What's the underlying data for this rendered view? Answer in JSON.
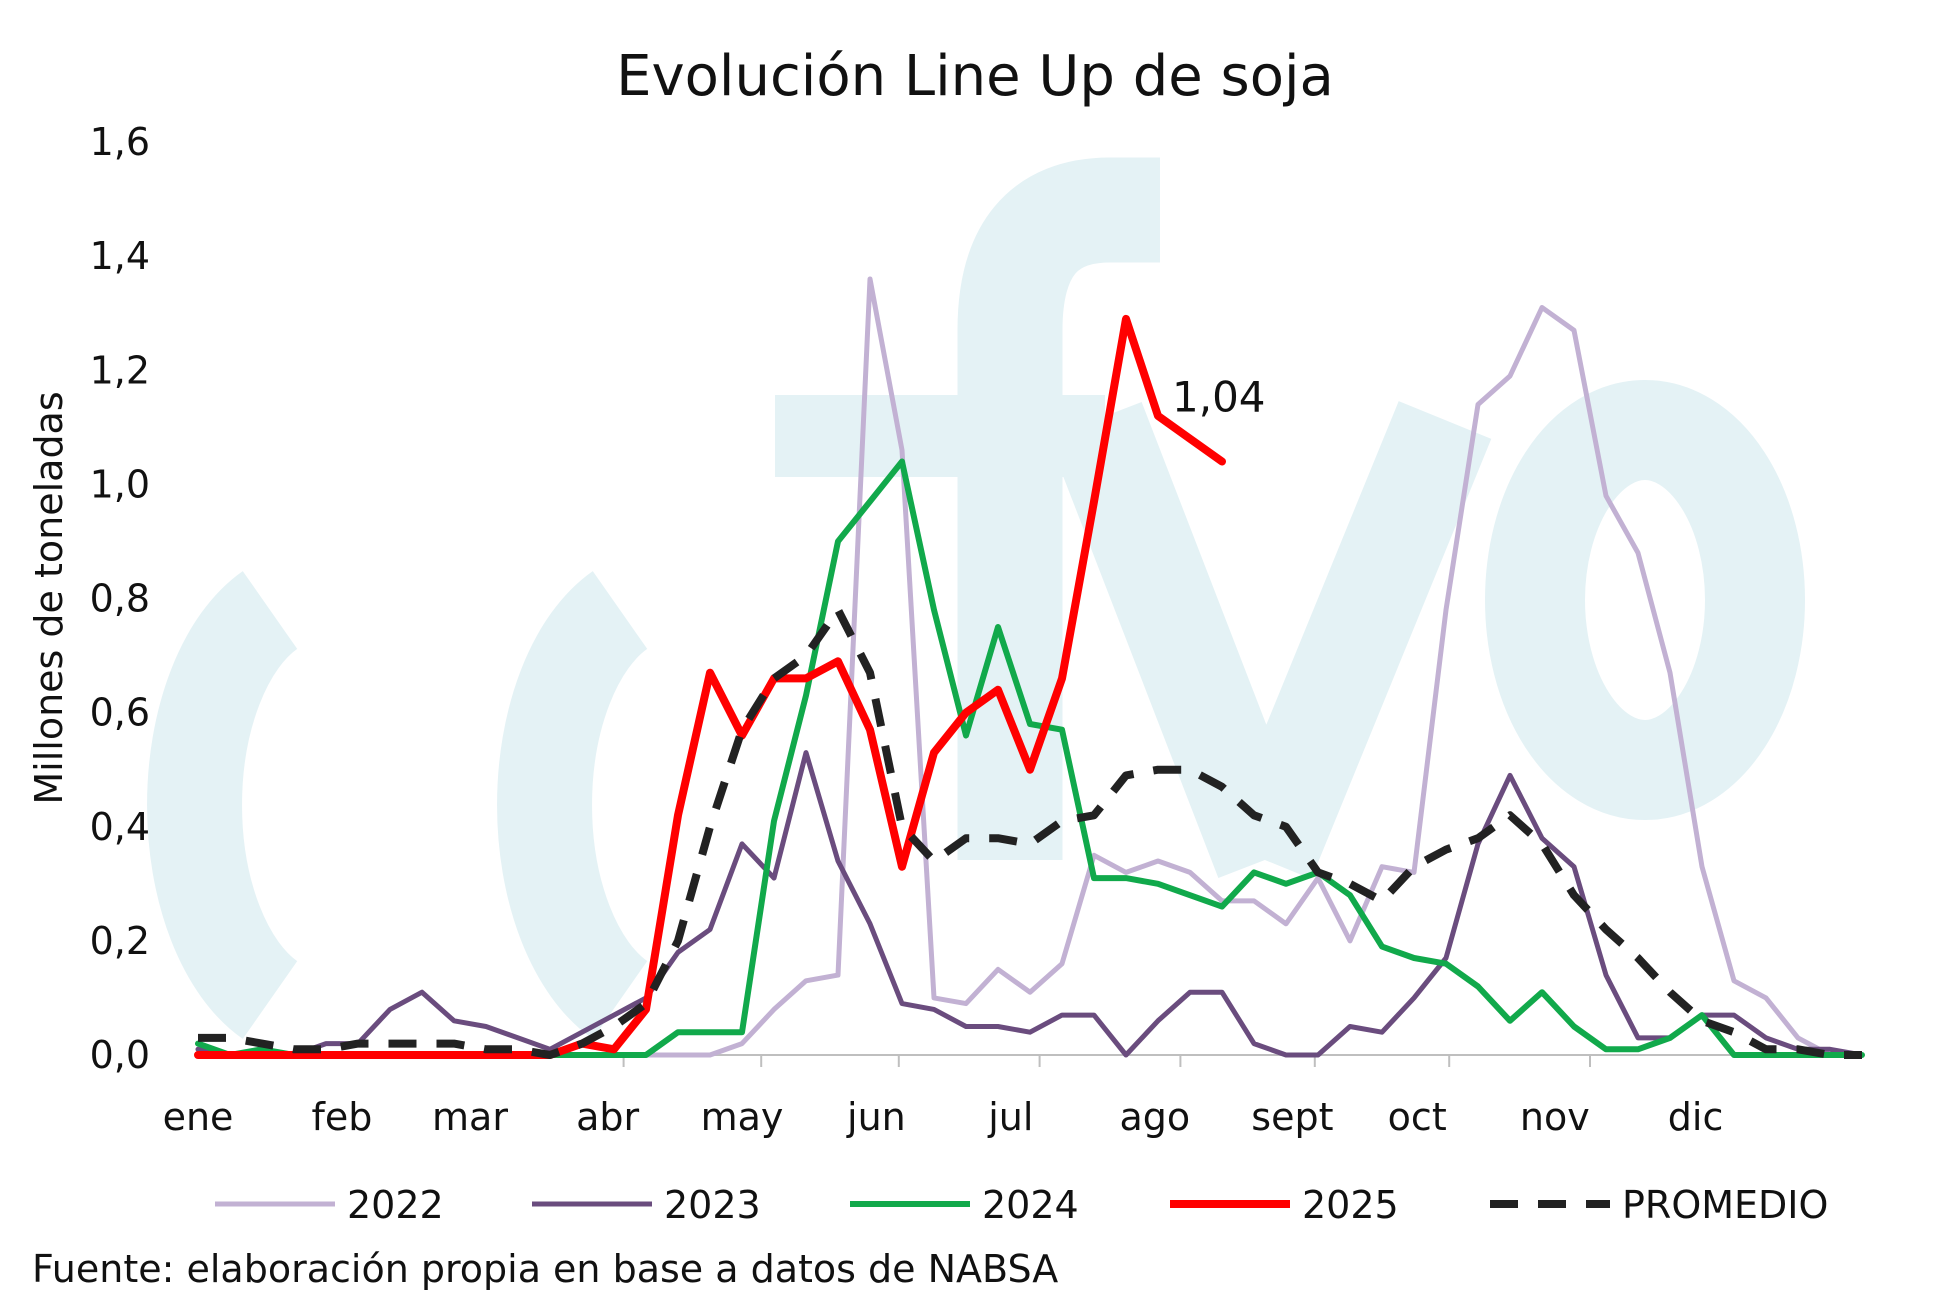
{
  "chart_data": {
    "type": "line",
    "title": "Evolución Line Up de soja",
    "ylabel": "Millones de toneladas",
    "ylim": [
      0,
      1.6
    ],
    "yticks": [
      "0,0",
      "0,2",
      "0,4",
      "0,6",
      "0,8",
      "1,0",
      "1,2",
      "1,4",
      "1,6"
    ],
    "xrange_weeks": [
      1,
      53
    ],
    "months": [
      {
        "label": "ene",
        "week": 1
      },
      {
        "label": "feb",
        "week": 5.5
      },
      {
        "label": "mar",
        "week": 9.5
      },
      {
        "label": "abr",
        "week": 13.8
      },
      {
        "label": "may",
        "week": 18
      },
      {
        "label": "jun",
        "week": 22.2
      },
      {
        "label": "jul",
        "week": 26.4
      },
      {
        "label": "ago",
        "week": 30.9
      },
      {
        "label": "sept",
        "week": 35.2
      },
      {
        "label": "oct",
        "week": 39.1
      },
      {
        "label": "nov",
        "week": 43.4
      },
      {
        "label": "dic",
        "week": 47.8
      }
    ],
    "series": [
      {
        "name": "2022",
        "color": "#c2b1d3",
        "width": 5,
        "dash": "",
        "values": [
          0.01,
          0.0,
          0.0,
          0.0,
          0.0,
          0.0,
          0.0,
          0.0,
          0.0,
          0.0,
          0.0,
          0.0,
          0.0,
          0.0,
          0.0,
          0.0,
          0.0,
          0.02,
          0.08,
          0.13,
          0.14,
          1.36,
          1.06,
          0.1,
          0.09,
          0.15,
          0.11,
          0.16,
          0.35,
          0.32,
          0.34,
          0.32,
          0.27,
          0.27,
          0.23,
          0.31,
          0.2,
          0.33,
          0.32,
          0.78,
          1.14,
          1.19,
          1.31,
          1.27,
          0.98,
          0.88,
          0.67,
          0.33,
          0.13,
          0.1,
          0.03,
          0.0,
          0.0
        ]
      },
      {
        "name": "2023",
        "color": "#6a4c7e",
        "width": 5,
        "dash": "",
        "values": [
          0.01,
          0.0,
          0.0,
          0.0,
          0.02,
          0.02,
          0.08,
          0.11,
          0.06,
          0.05,
          0.03,
          0.01,
          0.04,
          0.07,
          0.1,
          0.18,
          0.22,
          0.37,
          0.31,
          0.53,
          0.34,
          0.23,
          0.09,
          0.08,
          0.05,
          0.05,
          0.04,
          0.07,
          0.07,
          0.0,
          0.06,
          0.11,
          0.11,
          0.02,
          0.0,
          0.0,
          0.05,
          0.04,
          0.1,
          0.17,
          0.37,
          0.49,
          0.38,
          0.33,
          0.14,
          0.03,
          0.03,
          0.07,
          0.07,
          0.03,
          0.01,
          0.01,
          0.0
        ]
      },
      {
        "name": "2024",
        "color": "#11a94b",
        "width": 6,
        "dash": "",
        "values": [
          0.02,
          0.0,
          0.01,
          0.0,
          0.0,
          0.0,
          0.0,
          0.0,
          0.0,
          0.0,
          0.0,
          0.0,
          0.0,
          0.0,
          0.0,
          0.04,
          0.04,
          0.04,
          0.41,
          0.63,
          0.9,
          0.97,
          1.04,
          0.78,
          0.56,
          0.75,
          0.58,
          0.57,
          0.31,
          0.31,
          0.3,
          0.28,
          0.26,
          0.32,
          0.3,
          0.32,
          0.28,
          0.19,
          0.17,
          0.16,
          0.12,
          0.06,
          0.11,
          0.05,
          0.01,
          0.01,
          0.03,
          0.07,
          0.0,
          0.0,
          0.0,
          0.0,
          0.0
        ]
      },
      {
        "name": "2025",
        "color": "#ff0000",
        "width": 8,
        "dash": "",
        "values": [
          0.0,
          0.0,
          0.0,
          0.0,
          0.0,
          0.0,
          0.0,
          0.0,
          0.0,
          0.0,
          0.0,
          0.0,
          0.02,
          0.01,
          0.08,
          0.42,
          0.67,
          0.56,
          0.66,
          0.66,
          0.69,
          0.57,
          0.33,
          0.53,
          0.6,
          0.64,
          0.5,
          0.66,
          0.97,
          1.29,
          1.12,
          1.08,
          1.04
        ]
      },
      {
        "name": "PROMEDIO",
        "color": "#222222",
        "width": 8,
        "dash": "28,20",
        "values": [
          0.03,
          0.03,
          0.02,
          0.01,
          0.01,
          0.02,
          0.02,
          0.02,
          0.02,
          0.01,
          0.01,
          0.0,
          0.02,
          0.05,
          0.09,
          0.2,
          0.4,
          0.57,
          0.66,
          0.7,
          0.78,
          0.67,
          0.4,
          0.34,
          0.38,
          0.38,
          0.37,
          0.41,
          0.42,
          0.49,
          0.5,
          0.5,
          0.47,
          0.42,
          0.4,
          0.32,
          0.3,
          0.27,
          0.33,
          0.36,
          0.38,
          0.42,
          0.37,
          0.28,
          0.22,
          0.17,
          0.11,
          0.06,
          0.04,
          0.01,
          0.01,
          0.0,
          0.0
        ]
      }
    ],
    "annotations": [
      {
        "text": "1,04",
        "series": "2025",
        "week": 33
      }
    ],
    "grid": false,
    "legend_position": "bottom"
  },
  "source": "Fuente: elaboración propia en base a datos de NABSA",
  "watermark_text": "ofyo",
  "watermark_color": "#e4f2f5"
}
